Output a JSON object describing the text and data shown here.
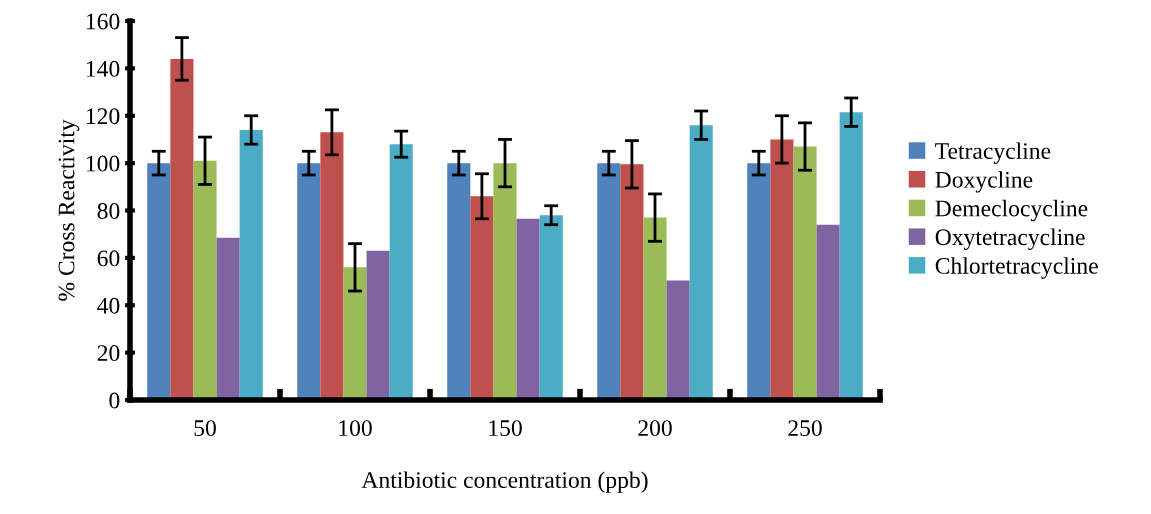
{
  "chart_data": {
    "type": "bar",
    "xlabel": "Antibiotic concentration (ppb)",
    "ylabel": "% Cross Reactivity",
    "categories": [
      "50",
      "100",
      "150",
      "200",
      "250"
    ],
    "series": [
      {
        "name": "Tetracycline",
        "color": "#4f81bd",
        "values": [
          100,
          100,
          100,
          100,
          100
        ],
        "errors": [
          5,
          5,
          5,
          5,
          5
        ]
      },
      {
        "name": "Doxycline",
        "color": "#c0504d",
        "values": [
          144,
          113,
          86,
          99.5,
          110
        ],
        "errors": [
          9,
          9.5,
          9.5,
          10,
          10
        ]
      },
      {
        "name": "Demeclocycline",
        "color": "#9bbb59",
        "values": [
          101,
          56,
          100,
          77,
          107
        ],
        "errors": [
          10,
          10,
          10,
          10,
          10
        ]
      },
      {
        "name": "Oxytetracycline",
        "color": "#8064a2",
        "values": [
          68.5,
          63,
          76.5,
          50.5,
          74
        ]
      },
      {
        "name": "Chlortetracycline",
        "color": "#4bacc6",
        "values": [
          114,
          108,
          78,
          116,
          121.5
        ],
        "errors": [
          6,
          5.5,
          4,
          6,
          6
        ]
      }
    ],
    "ylim": [
      0,
      160
    ],
    "yticks": [
      0,
      20,
      40,
      60,
      80,
      100,
      120,
      140,
      160
    ],
    "grid": false,
    "legend": "right"
  }
}
